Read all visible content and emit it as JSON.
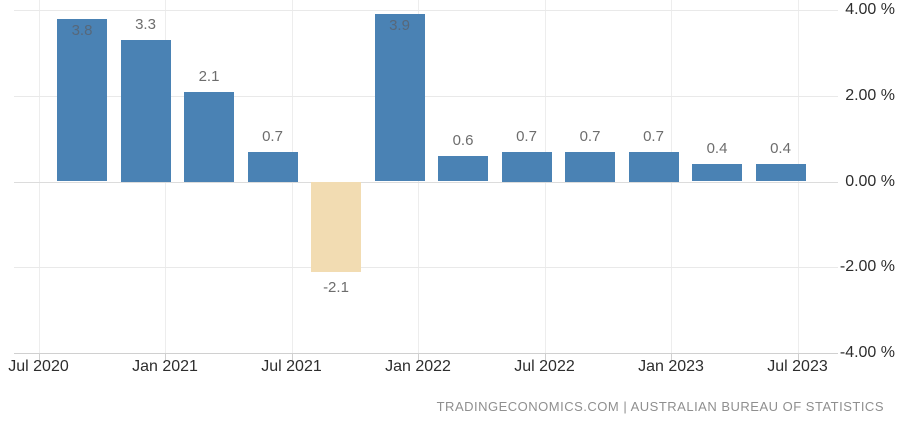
{
  "chart_data": {
    "type": "bar",
    "title": "",
    "xlabel": "",
    "ylabel": "",
    "ylim": [
      -4,
      4
    ],
    "grid": true,
    "legend": false,
    "values": [
      3.8,
      3.3,
      2.1,
      0.7,
      -2.1,
      3.9,
      0.6,
      0.7,
      0.7,
      0.7,
      0.4,
      0.4
    ],
    "bar_labels": [
      "3.8",
      "3.3",
      "2.1",
      "0.7",
      "-2.1",
      "3.9",
      "0.6",
      "0.7",
      "0.7",
      "0.7",
      "0.4",
      "0.4"
    ],
    "x_ticks": [
      "Jul 2020",
      "Jan 2021",
      "Jul 2021",
      "Jan 2022",
      "Jul 2022",
      "Jan 2023",
      "Jul 2023"
    ],
    "y_ticks": [
      {
        "value": 4,
        "label": "4.00 %"
      },
      {
        "value": 2,
        "label": "2.00 %"
      },
      {
        "value": 0,
        "label": "0.00 %"
      },
      {
        "value": -2,
        "label": "-2.00 %"
      },
      {
        "value": -4,
        "label": "-4.00 %"
      }
    ],
    "positive_color": "#4a82b4",
    "negative_color": "#f2dcb2"
  },
  "footer": {
    "attribution": "TRADINGECONOMICS.COM | AUSTRALIAN BUREAU OF STATISTICS"
  }
}
